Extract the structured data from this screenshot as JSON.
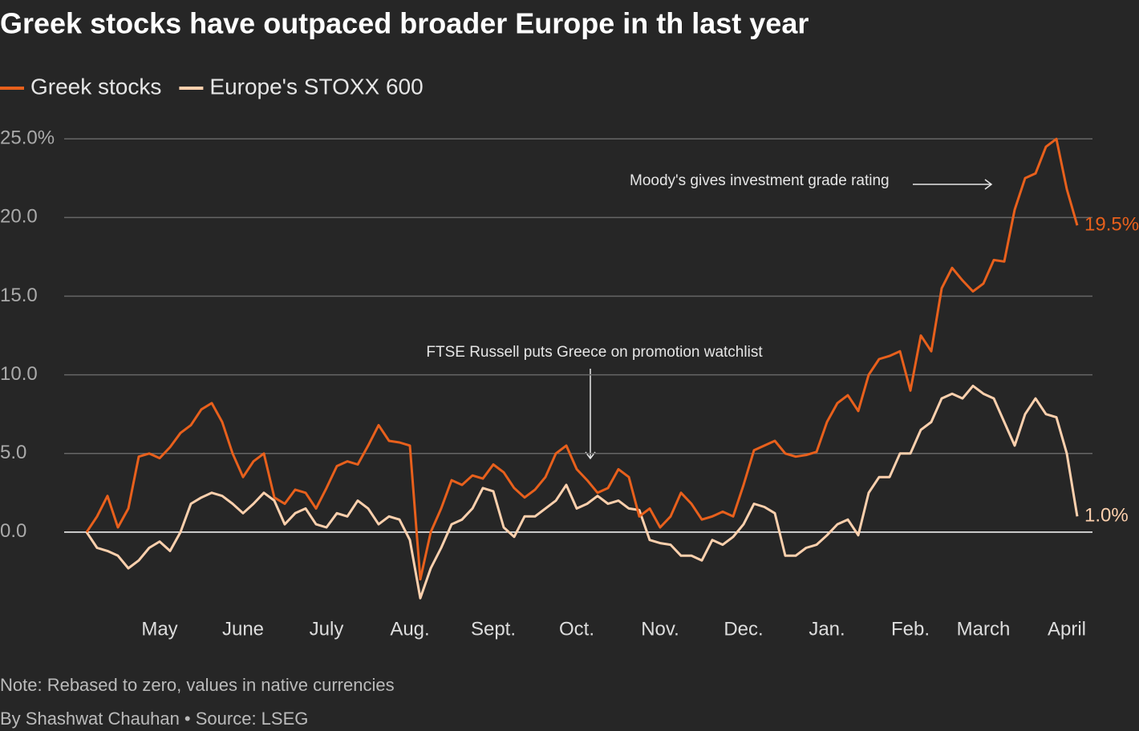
{
  "chart_data": {
    "type": "line",
    "title": "Greek stocks have outpaced broader Europe in th last year",
    "categories": [
      null,
      null,
      null,
      null,
      null,
      null,
      null,
      "May",
      null,
      null,
      null,
      null,
      null,
      null,
      null,
      "June",
      null,
      null,
      null,
      null,
      null,
      null,
      null,
      "July",
      null,
      null,
      null,
      null,
      null,
      null,
      null,
      "Aug.",
      null,
      null,
      null,
      null,
      null,
      null,
      null,
      "Sept.",
      null,
      null,
      null,
      null,
      null,
      null,
      null,
      "Oct.",
      null,
      null,
      null,
      null,
      null,
      null,
      null,
      "Nov.",
      null,
      null,
      null,
      null,
      null,
      null,
      null,
      "Dec.",
      null,
      null,
      null,
      null,
      null,
      null,
      null,
      "Jan.",
      null,
      null,
      null,
      null,
      null,
      null,
      null,
      "Feb.",
      null,
      null,
      null,
      null,
      null,
      null,
      "March",
      null,
      null,
      null,
      null,
      null,
      null,
      null,
      "April",
      null
    ],
    "series": [
      {
        "name": "Greek stocks",
        "color": "#e8601c",
        "end_label": "19.5%",
        "values": [
          0,
          1.0,
          2.3,
          0.3,
          1.5,
          4.8,
          5.0,
          4.7,
          5.4,
          6.3,
          6.8,
          7.8,
          8.2,
          7.0,
          5.0,
          3.5,
          4.5,
          5.0,
          2.2,
          1.8,
          2.7,
          2.5,
          1.5,
          2.8,
          4.2,
          4.5,
          4.3,
          5.5,
          6.8,
          5.8,
          5.7,
          5.5,
          -3.0,
          0.0,
          1.5,
          3.3,
          3.0,
          3.6,
          3.4,
          4.3,
          3.8,
          2.8,
          2.2,
          2.7,
          3.5,
          5.0,
          5.5,
          4.0,
          3.3,
          2.5,
          2.8,
          4.0,
          3.5,
          1.0,
          1.5,
          0.3,
          1.0,
          2.5,
          1.8,
          0.8,
          1.0,
          1.3,
          1.0,
          3.0,
          5.2,
          5.5,
          5.8,
          5.0,
          4.8,
          4.9,
          5.1,
          7.0,
          8.2,
          8.7,
          7.7,
          10.0,
          11.0,
          11.2,
          11.5,
          9.0,
          12.5,
          11.5,
          15.5,
          16.8,
          16.0,
          15.3,
          15.8,
          17.3,
          17.2,
          20.5,
          22.5,
          22.8,
          24.5,
          25.0,
          21.8,
          19.5
        ]
      },
      {
        "name": "Europe's STOXX 600",
        "color": "#fdd0ad",
        "end_label": "1.0%",
        "values": [
          0,
          -1.0,
          -1.2,
          -1.5,
          -2.3,
          -1.8,
          -1.0,
          -0.6,
          -1.2,
          0.0,
          1.8,
          2.2,
          2.5,
          2.3,
          1.8,
          1.2,
          1.8,
          2.5,
          2.0,
          0.5,
          1.2,
          1.5,
          0.5,
          0.3,
          1.2,
          1.0,
          2.0,
          1.5,
          0.5,
          1.0,
          0.8,
          -0.5,
          -4.2,
          -2.3,
          -1.0,
          0.5,
          0.8,
          1.5,
          2.8,
          2.6,
          0.3,
          -0.3,
          1.0,
          1.0,
          1.5,
          2.0,
          3.0,
          1.5,
          1.8,
          2.3,
          1.8,
          2.0,
          1.5,
          1.4,
          -0.5,
          -0.7,
          -0.8,
          -1.5,
          -1.5,
          -1.8,
          -0.5,
          -0.8,
          -0.3,
          0.5,
          1.8,
          1.6,
          1.2,
          -1.5,
          -1.5,
          -1.0,
          -0.8,
          -0.2,
          0.5,
          0.8,
          -0.2,
          2.5,
          3.5,
          3.5,
          5.0,
          5.0,
          6.5,
          7.0,
          8.5,
          8.8,
          8.5,
          9.3,
          8.8,
          8.5,
          7.0,
          5.5,
          7.5,
          8.5,
          7.5,
          7.3,
          5.0,
          1.0
        ]
      }
    ],
    "ylim": [
      -5,
      27
    ],
    "yticks": [
      {
        "value": 0,
        "label": "0.0"
      },
      {
        "value": 5,
        "label": "5.0"
      },
      {
        "value": 10,
        "label": "10.0"
      },
      {
        "value": 15,
        "label": "15.0"
      },
      {
        "value": 20,
        "label": "20.0"
      },
      {
        "value": 25,
        "label": "25.0%"
      }
    ],
    "grid": true,
    "annotations": [
      "Moody's gives investment grade rating",
      "FTSE Russell puts Greece on promotion watchlist"
    ],
    "note": "Note: Rebased to zero, values in native currencies",
    "source": "By Shashwat Chauhan • Source: LSEG"
  }
}
